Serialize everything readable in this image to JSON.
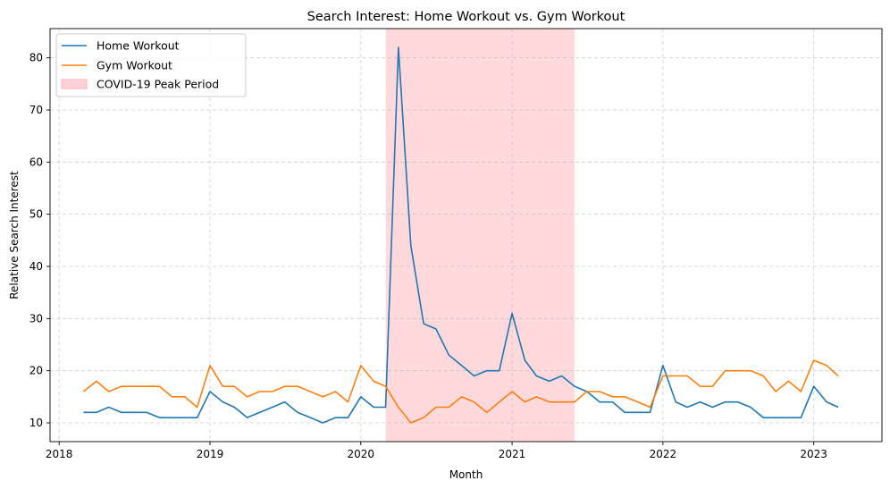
{
  "chart_data": {
    "type": "line",
    "title": "Search Interest: Home Workout vs. Gym Workout",
    "xlabel": "Month",
    "ylabel": "Relative Search Interest",
    "xlim": [
      "2017-12-10",
      "2023-06-15"
    ],
    "ylim": [
      6.4,
      85.6
    ],
    "x_ticks": [
      "2018",
      "2019",
      "2020",
      "2021",
      "2022",
      "2023"
    ],
    "y_ticks": [
      10,
      20,
      30,
      40,
      50,
      60,
      70,
      80
    ],
    "grid": true,
    "legend_position": "top-left",
    "x": [
      "2018-03",
      "2018-04",
      "2018-05",
      "2018-06",
      "2018-07",
      "2018-08",
      "2018-09",
      "2018-10",
      "2018-11",
      "2018-12",
      "2019-01",
      "2019-02",
      "2019-03",
      "2019-04",
      "2019-05",
      "2019-06",
      "2019-07",
      "2019-08",
      "2019-09",
      "2019-10",
      "2019-11",
      "2019-12",
      "2020-01",
      "2020-02",
      "2020-03",
      "2020-04",
      "2020-05",
      "2020-06",
      "2020-07",
      "2020-08",
      "2020-09",
      "2020-10",
      "2020-11",
      "2020-12",
      "2021-01",
      "2021-02",
      "2021-03",
      "2021-04",
      "2021-05",
      "2021-06",
      "2021-07",
      "2021-08",
      "2021-09",
      "2021-10",
      "2021-11",
      "2021-12",
      "2022-01",
      "2022-02",
      "2022-03",
      "2022-04",
      "2022-05",
      "2022-06",
      "2022-07",
      "2022-08",
      "2022-09",
      "2022-10",
      "2022-11",
      "2022-12",
      "2023-01",
      "2023-02",
      "2023-03"
    ],
    "series": [
      {
        "name": "Home Workout",
        "color": "#1f77b4",
        "values": [
          12,
          12,
          13,
          12,
          12,
          12,
          11,
          11,
          11,
          11,
          16,
          14,
          13,
          11,
          12,
          13,
          14,
          12,
          11,
          10,
          11,
          11,
          15,
          13,
          13,
          82,
          44,
          29,
          28,
          23,
          21,
          19,
          20,
          20,
          31,
          22,
          19,
          18,
          19,
          17,
          16,
          14,
          14,
          12,
          12,
          12,
          21,
          14,
          13,
          14,
          13,
          14,
          14,
          13,
          11,
          11,
          11,
          11,
          17,
          14,
          13
        ]
      },
      {
        "name": "Gym Workout",
        "color": "#ff7f0e",
        "values": [
          16,
          18,
          16,
          17,
          17,
          17,
          17,
          15,
          15,
          13,
          21,
          17,
          17,
          15,
          16,
          16,
          17,
          17,
          16,
          15,
          16,
          14,
          21,
          18,
          17,
          13,
          10,
          11,
          13,
          13,
          15,
          14,
          12,
          14,
          16,
          14,
          15,
          14,
          14,
          14,
          16,
          16,
          15,
          15,
          14,
          13,
          19,
          19,
          19,
          17,
          17,
          20,
          20,
          20,
          19,
          16,
          18,
          16,
          22,
          21,
          19
        ]
      }
    ],
    "shaded_region": {
      "name": "COVID-19 Peak Period",
      "start": "2020-03-01",
      "end": "2021-06-01",
      "color": "#ffb3b8"
    }
  }
}
